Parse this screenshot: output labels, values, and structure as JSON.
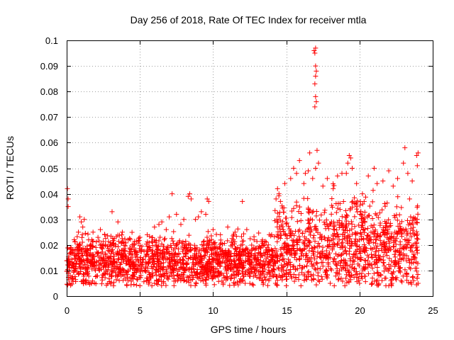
{
  "chart_data": {
    "type": "scatter",
    "title": "Day 256 of 2018, Rate Of TEC Index for receiver mtla",
    "xlabel": "GPS time / hours",
    "ylabel": "ROTI / TECUs",
    "xlim": [
      0,
      25
    ],
    "ylim": [
      0,
      0.1
    ],
    "x_ticks": [
      0,
      5,
      10,
      15,
      20,
      25
    ],
    "x_tick_labels": [
      "0",
      "5",
      "10",
      "15",
      "20",
      "25"
    ],
    "y_ticks": [
      0,
      0.01,
      0.02,
      0.03,
      0.04,
      0.05,
      0.06,
      0.07,
      0.08,
      0.09,
      0.1
    ],
    "y_tick_labels": [
      "0",
      "0.01",
      "0.02",
      "0.03",
      "0.04",
      "0.05",
      "0.06",
      "0.07",
      "0.08",
      "0.09",
      "0.1"
    ],
    "grid": true,
    "marker": "+",
    "color": "#ff0000",
    "series": [
      {
        "name": "ROTI",
        "points": [
          [
            0.05,
            0.042
          ],
          [
            0.1,
            0.038
          ],
          [
            0.1,
            0.035
          ],
          [
            0.15,
            0.012
          ],
          [
            0.2,
            0.011
          ],
          [
            0.3,
            0.019
          ],
          [
            0.5,
            0.016
          ],
          [
            0.8,
            0.025
          ],
          [
            0.9,
            0.031
          ],
          [
            1.0,
            0.029
          ],
          [
            1.1,
            0.027
          ],
          [
            1.2,
            0.03
          ],
          [
            1.5,
            0.022
          ],
          [
            1.8,
            0.025
          ],
          [
            2.0,
            0.019
          ],
          [
            2.3,
            0.026
          ],
          [
            2.6,
            0.024
          ],
          [
            3.0,
            0.021
          ],
          [
            3.1,
            0.033
          ],
          [
            3.5,
            0.029
          ],
          [
            3.8,
            0.025
          ],
          [
            4.2,
            0.022
          ],
          [
            4.6,
            0.02
          ],
          [
            5.0,
            0.023
          ],
          [
            5.5,
            0.024
          ],
          [
            6.0,
            0.027
          ],
          [
            6.3,
            0.028
          ],
          [
            6.5,
            0.029
          ],
          [
            6.8,
            0.026
          ],
          [
            7.0,
            0.031
          ],
          [
            7.2,
            0.04
          ],
          [
            7.5,
            0.032
          ],
          [
            7.8,
            0.028
          ],
          [
            8.0,
            0.03
          ],
          [
            8.3,
            0.039
          ],
          [
            8.4,
            0.04
          ],
          [
            8.5,
            0.038
          ],
          [
            8.8,
            0.03
          ],
          [
            9.0,
            0.031
          ],
          [
            9.2,
            0.033
          ],
          [
            9.5,
            0.032
          ],
          [
            9.6,
            0.038
          ],
          [
            9.7,
            0.037
          ],
          [
            10.0,
            0.026
          ],
          [
            10.5,
            0.024
          ],
          [
            11.0,
            0.027
          ],
          [
            11.5,
            0.025
          ],
          [
            12.0,
            0.037
          ],
          [
            12.3,
            0.026
          ],
          [
            12.8,
            0.022
          ],
          [
            13.2,
            0.019
          ],
          [
            13.6,
            0.018
          ],
          [
            14.0,
            0.024
          ],
          [
            14.3,
            0.038
          ],
          [
            14.4,
            0.042
          ],
          [
            14.5,
            0.04
          ],
          [
            14.6,
            0.037
          ],
          [
            14.9,
            0.044
          ],
          [
            15.3,
            0.046
          ],
          [
            15.5,
            0.05
          ],
          [
            15.7,
            0.048
          ],
          [
            15.9,
            0.053
          ],
          [
            16.2,
            0.044
          ],
          [
            16.3,
            0.048
          ],
          [
            16.5,
            0.049
          ],
          [
            16.6,
            0.056
          ],
          [
            16.8,
            0.046
          ],
          [
            16.9,
            0.096
          ],
          [
            17.0,
            0.097
          ],
          [
            16.95,
            0.095
          ],
          [
            17.0,
            0.09
          ],
          [
            17.05,
            0.088
          ],
          [
            17.0,
            0.086
          ],
          [
            16.95,
            0.083
          ],
          [
            17.0,
            0.078
          ],
          [
            17.05,
            0.076
          ],
          [
            16.95,
            0.074
          ],
          [
            17.1,
            0.057
          ],
          [
            17.2,
            0.052
          ],
          [
            17.0,
            0.05
          ],
          [
            17.5,
            0.043
          ],
          [
            17.8,
            0.046
          ],
          [
            18.2,
            0.042
          ],
          [
            18.5,
            0.047
          ],
          [
            18.8,
            0.048
          ],
          [
            19.2,
            0.052
          ],
          [
            19.3,
            0.055
          ],
          [
            19.4,
            0.054
          ],
          [
            19.5,
            0.05
          ],
          [
            19.1,
            0.048
          ],
          [
            19.8,
            0.044
          ],
          [
            20.2,
            0.04
          ],
          [
            20.6,
            0.047
          ],
          [
            21.0,
            0.05
          ],
          [
            21.2,
            0.044
          ],
          [
            21.6,
            0.045
          ],
          [
            22.0,
            0.049
          ],
          [
            22.3,
            0.043
          ],
          [
            22.6,
            0.046
          ],
          [
            23.0,
            0.052
          ],
          [
            23.1,
            0.058
          ],
          [
            23.3,
            0.048
          ],
          [
            23.6,
            0.045
          ],
          [
            23.9,
            0.055
          ],
          [
            24.0,
            0.056
          ],
          [
            23.95,
            0.051
          ],
          [
            0.2,
            0.005
          ],
          [
            3.2,
            0.004
          ],
          [
            5.0,
            0.004
          ],
          [
            6.0,
            0.005
          ],
          [
            8.0,
            0.006
          ],
          [
            9.5,
            0.005
          ],
          [
            11.5,
            0.005
          ],
          [
            15.0,
            0.004
          ],
          [
            16.0,
            0.004
          ],
          [
            18.0,
            0.005
          ],
          [
            19.0,
            0.004
          ],
          [
            20.0,
            0.005
          ],
          [
            22.0,
            0.004
          ],
          [
            24.0,
            0.005
          ]
        ]
      }
    ]
  }
}
